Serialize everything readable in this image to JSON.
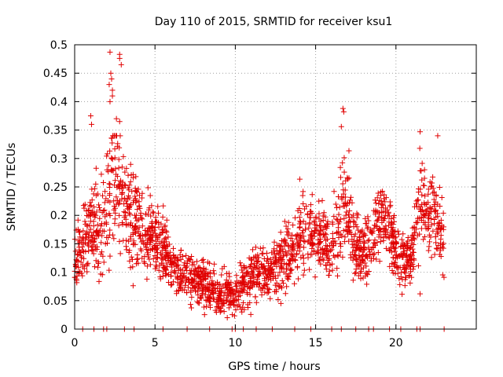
{
  "chart_data": {
    "type": "scatter",
    "title": "Day 110 of 2015, SRMTID for receiver ksu1",
    "xlabel": "GPS time / hours",
    "ylabel": "SRMTID / TECUs",
    "xlim": [
      0,
      25
    ],
    "ylim": [
      0,
      0.5
    ],
    "x_ticks": [
      0,
      5,
      10,
      15,
      20
    ],
    "y_ticks": [
      0,
      0.05,
      0.1,
      0.15,
      0.2,
      0.25,
      0.3,
      0.35,
      0.4,
      0.45,
      0.5
    ],
    "x_tick_labels": [
      "0",
      "5",
      "10",
      "15",
      "20"
    ],
    "y_tick_labels": [
      "0",
      "0.05",
      "0.1",
      "0.15",
      "0.2",
      "0.25",
      "0.3",
      "0.35",
      "0.4",
      "0.45",
      "0.5"
    ],
    "grid": true,
    "marker": "+",
    "color": "#e00000",
    "series": [
      {
        "name": "SRMTID",
        "envelope": {
          "x": [
            0.0,
            0.5,
            1.0,
            1.5,
            2.0,
            2.3,
            2.6,
            3.0,
            3.5,
            4.0,
            4.5,
            5.0,
            5.5,
            6.0,
            6.5,
            7.0,
            7.5,
            8.0,
            8.5,
            9.0,
            9.5,
            10.0,
            10.5,
            11.0,
            11.5,
            12.0,
            12.5,
            13.0,
            13.5,
            14.0,
            14.5,
            15.0,
            15.5,
            16.0,
            16.5,
            16.8,
            17.0,
            17.5,
            18.0,
            18.5,
            19.0,
            19.5,
            20.0,
            20.5,
            21.0,
            21.5,
            22.0,
            22.5,
            23.0
          ],
          "median": [
            0.13,
            0.14,
            0.18,
            0.17,
            0.22,
            0.26,
            0.27,
            0.23,
            0.19,
            0.18,
            0.17,
            0.16,
            0.15,
            0.11,
            0.1,
            0.09,
            0.09,
            0.08,
            0.07,
            0.06,
            0.06,
            0.06,
            0.08,
            0.09,
            0.1,
            0.1,
            0.11,
            0.13,
            0.14,
            0.16,
            0.17,
            0.16,
            0.16,
            0.14,
            0.18,
            0.24,
            0.2,
            0.14,
            0.13,
            0.16,
            0.19,
            0.19,
            0.13,
            0.12,
            0.13,
            0.23,
            0.2,
            0.19,
            0.16
          ],
          "spread": [
            0.04,
            0.04,
            0.06,
            0.05,
            0.07,
            0.09,
            0.09,
            0.07,
            0.06,
            0.05,
            0.05,
            0.04,
            0.04,
            0.03,
            0.03,
            0.03,
            0.03,
            0.03,
            0.03,
            0.025,
            0.025,
            0.025,
            0.03,
            0.03,
            0.03,
            0.03,
            0.035,
            0.04,
            0.045,
            0.05,
            0.05,
            0.045,
            0.045,
            0.04,
            0.06,
            0.07,
            0.06,
            0.04,
            0.04,
            0.045,
            0.05,
            0.05,
            0.04,
            0.035,
            0.04,
            0.06,
            0.055,
            0.05,
            0.04
          ]
        },
        "points_per_hour": 90,
        "seed": 110,
        "outliers": [
          {
            "x": 2.2,
            "y": 0.487
          },
          {
            "x": 2.8,
            "y": 0.483
          },
          {
            "x": 2.8,
            "y": 0.476
          },
          {
            "x": 2.9,
            "y": 0.465
          },
          {
            "x": 2.25,
            "y": 0.45
          },
          {
            "x": 2.3,
            "y": 0.44
          },
          {
            "x": 2.15,
            "y": 0.43
          },
          {
            "x": 2.35,
            "y": 0.42
          },
          {
            "x": 2.35,
            "y": 0.41
          },
          {
            "x": 2.2,
            "y": 0.4
          },
          {
            "x": 1.0,
            "y": 0.375
          },
          {
            "x": 1.05,
            "y": 0.36
          },
          {
            "x": 2.6,
            "y": 0.37
          },
          {
            "x": 2.8,
            "y": 0.365
          },
          {
            "x": 16.7,
            "y": 0.388
          },
          {
            "x": 16.75,
            "y": 0.382
          },
          {
            "x": 16.6,
            "y": 0.356
          },
          {
            "x": 21.5,
            "y": 0.347
          },
          {
            "x": 22.6,
            "y": 0.34
          },
          {
            "x": 21.5,
            "y": 0.062
          },
          {
            "x": 9.5,
            "y": 0.02
          }
        ],
        "zero_ticks_x": [
          0.5,
          1.2,
          1.8,
          2.0,
          3.1,
          3.7,
          5.5,
          7.0,
          8.4,
          9.8,
          10.0,
          10.5,
          11.3,
          12.3,
          13.7,
          14.7,
          16.0,
          16.6,
          17.5,
          18.3,
          18.6,
          19.6,
          20.3,
          21.3,
          21.5,
          23.0
        ]
      }
    ]
  }
}
